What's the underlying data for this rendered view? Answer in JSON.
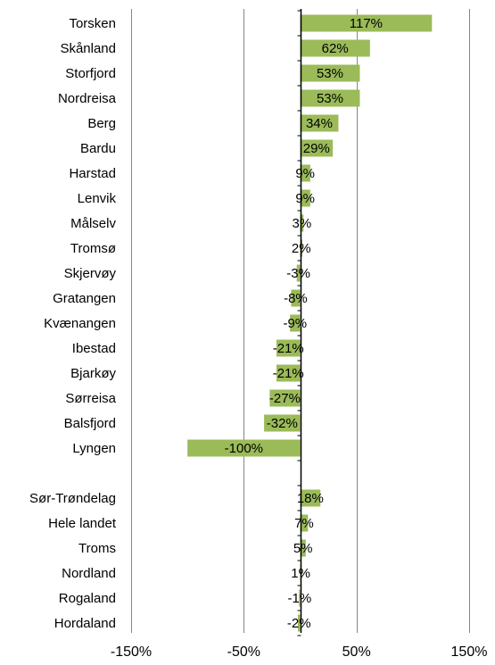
{
  "chart_data": {
    "type": "bar",
    "orientation": "horizontal",
    "categories": [
      "Torsken",
      "Skånland",
      "Storfjord",
      "Nordreisa",
      "Berg",
      "Bardu",
      "Harstad",
      "Lenvik",
      "Målselv",
      "Tromsø",
      "Skjervøy",
      "Gratangen",
      "Kvænangen",
      "Ibestad",
      "Bjarkøy",
      "Sørreisa",
      "Balsfjord",
      "Lyngen",
      "",
      "Sør-Trøndelag",
      "Hele landet",
      "Troms",
      "Nordland",
      "Rogaland",
      "Hordaland"
    ],
    "values": [
      117,
      62,
      53,
      53,
      34,
      29,
      9,
      9,
      3,
      2,
      -3,
      -8,
      -9,
      -21,
      -21,
      -27,
      -32,
      -100,
      null,
      18,
      7,
      5,
      1,
      -1,
      -2
    ],
    "data_labels": [
      "117%",
      "62%",
      "53%",
      "53%",
      "34%",
      "29%",
      "9%",
      "9%",
      "3%",
      "2%",
      "-3%",
      "-8%",
      "-9%",
      "-21%",
      "-21%",
      "-27%",
      "-32%",
      "-100%",
      "",
      "18%",
      "7%",
      "5%",
      "1%",
      "-1%",
      "-2%"
    ],
    "xlim": [
      -150,
      150
    ],
    "xticks": [
      -150,
      -50,
      50,
      150
    ],
    "xtick_labels": [
      "-150%",
      "-50%",
      "50%",
      "150%"
    ],
    "grid": true,
    "colors": {
      "bar": "#9bbb59",
      "grid": "#868686",
      "axis": "#000000"
    }
  }
}
